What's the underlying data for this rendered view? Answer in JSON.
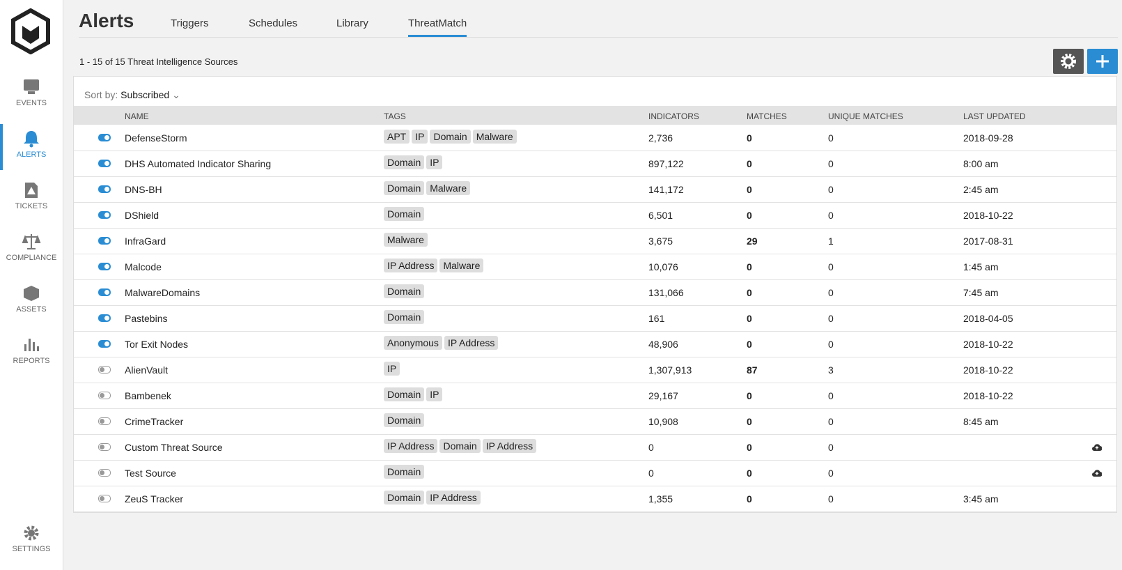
{
  "sidebar": {
    "items": [
      {
        "label": "EVENTS"
      },
      {
        "label": "ALERTS",
        "active": true
      },
      {
        "label": "TICKETS"
      },
      {
        "label": "COMPLIANCE"
      },
      {
        "label": "ASSETS"
      },
      {
        "label": "REPORTS"
      }
    ],
    "settings": "SETTINGS"
  },
  "header": {
    "title": "Alerts",
    "tabs": [
      {
        "label": "Triggers"
      },
      {
        "label": "Schedules"
      },
      {
        "label": "Library"
      },
      {
        "label": "ThreatMatch",
        "active": true
      }
    ]
  },
  "summary": "1 - 15 of 15 Threat Intelligence Sources",
  "sort": {
    "label": "Sort by:",
    "value": "Subscribed"
  },
  "table": {
    "columns": [
      "NAME",
      "TAGS",
      "INDICATORS",
      "MATCHES",
      "UNIQUE MATCHES",
      "LAST UPDATED"
    ],
    "rows": [
      {
        "subscribed": true,
        "name": "DefenseStorm",
        "tags": [
          "APT",
          "IP",
          "Domain",
          "Malware"
        ],
        "indicators": "2,736",
        "matches": "0",
        "unique_matches": "0",
        "last_updated": "2018-09-28"
      },
      {
        "subscribed": true,
        "name": "DHS Automated Indicator Sharing",
        "tags": [
          "Domain",
          "IP"
        ],
        "indicators": "897,122",
        "matches": "0",
        "unique_matches": "0",
        "last_updated": "8:00 am"
      },
      {
        "subscribed": true,
        "name": "DNS-BH",
        "tags": [
          "Domain",
          "Malware"
        ],
        "indicators": "141,172",
        "matches": "0",
        "unique_matches": "0",
        "last_updated": "2:45 am"
      },
      {
        "subscribed": true,
        "name": "DShield",
        "tags": [
          "Domain"
        ],
        "indicators": "6,501",
        "matches": "0",
        "unique_matches": "0",
        "last_updated": "2018-10-22"
      },
      {
        "subscribed": true,
        "name": "InfraGard",
        "tags": [
          "Malware"
        ],
        "indicators": "3,675",
        "matches": "29",
        "unique_matches": "1",
        "last_updated": "2017-08-31"
      },
      {
        "subscribed": true,
        "name": "Malcode",
        "tags": [
          "IP Address",
          "Malware"
        ],
        "indicators": "10,076",
        "matches": "0",
        "unique_matches": "0",
        "last_updated": "1:45 am"
      },
      {
        "subscribed": true,
        "name": "MalwareDomains",
        "tags": [
          "Domain"
        ],
        "indicators": "131,066",
        "matches": "0",
        "unique_matches": "0",
        "last_updated": "7:45 am"
      },
      {
        "subscribed": true,
        "name": "Pastebins",
        "tags": [
          "Domain"
        ],
        "indicators": "161",
        "matches": "0",
        "unique_matches": "0",
        "last_updated": "2018-04-05"
      },
      {
        "subscribed": true,
        "name": "Tor Exit Nodes",
        "tags": [
          "Anonymous",
          "IP Address"
        ],
        "indicators": "48,906",
        "matches": "0",
        "unique_matches": "0",
        "last_updated": "2018-10-22"
      },
      {
        "subscribed": false,
        "name": "AlienVault",
        "tags": [
          "IP"
        ],
        "indicators": "1,307,913",
        "matches": "87",
        "unique_matches": "3",
        "last_updated": "2018-10-22"
      },
      {
        "subscribed": false,
        "name": "Bambenek",
        "tags": [
          "Domain",
          "IP"
        ],
        "indicators": "29,167",
        "matches": "0",
        "unique_matches": "0",
        "last_updated": "2018-10-22"
      },
      {
        "subscribed": false,
        "name": "CrimeTracker",
        "tags": [
          "Domain"
        ],
        "indicators": "10,908",
        "matches": "0",
        "unique_matches": "0",
        "last_updated": "8:45 am"
      },
      {
        "subscribed": false,
        "name": "Custom Threat Source",
        "tags": [
          "IP Address",
          "Domain",
          "IP Address"
        ],
        "indicators": "0",
        "matches": "0",
        "unique_matches": "0",
        "cloud": true
      },
      {
        "subscribed": false,
        "name": "Test Source",
        "tags": [
          "Domain"
        ],
        "indicators": "0",
        "matches": "0",
        "unique_matches": "0",
        "cloud": true
      },
      {
        "subscribed": false,
        "name": "ZeuS Tracker",
        "tags": [
          "Domain",
          "IP Address"
        ],
        "indicators": "1,355",
        "matches": "0",
        "unique_matches": "0",
        "last_updated": "3:45 am"
      }
    ]
  }
}
